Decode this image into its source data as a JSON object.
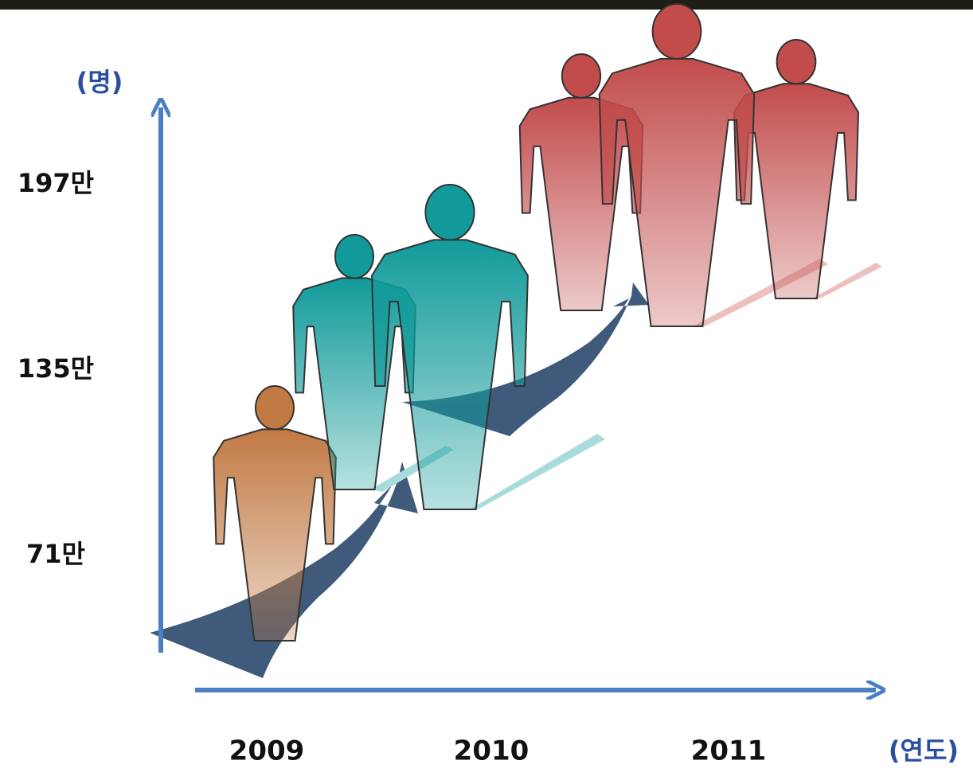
{
  "chart_data": {
    "type": "pictogram",
    "y_label": "(명)",
    "x_label": "(연도)",
    "categories": [
      "2009",
      "2010",
      "2011"
    ],
    "values": [
      710000,
      1350000,
      1970000
    ],
    "value_labels": [
      "71만",
      "135만",
      "197만"
    ],
    "colors": [
      "#c27a45",
      "#129a9a",
      "#c24c4c"
    ]
  }
}
